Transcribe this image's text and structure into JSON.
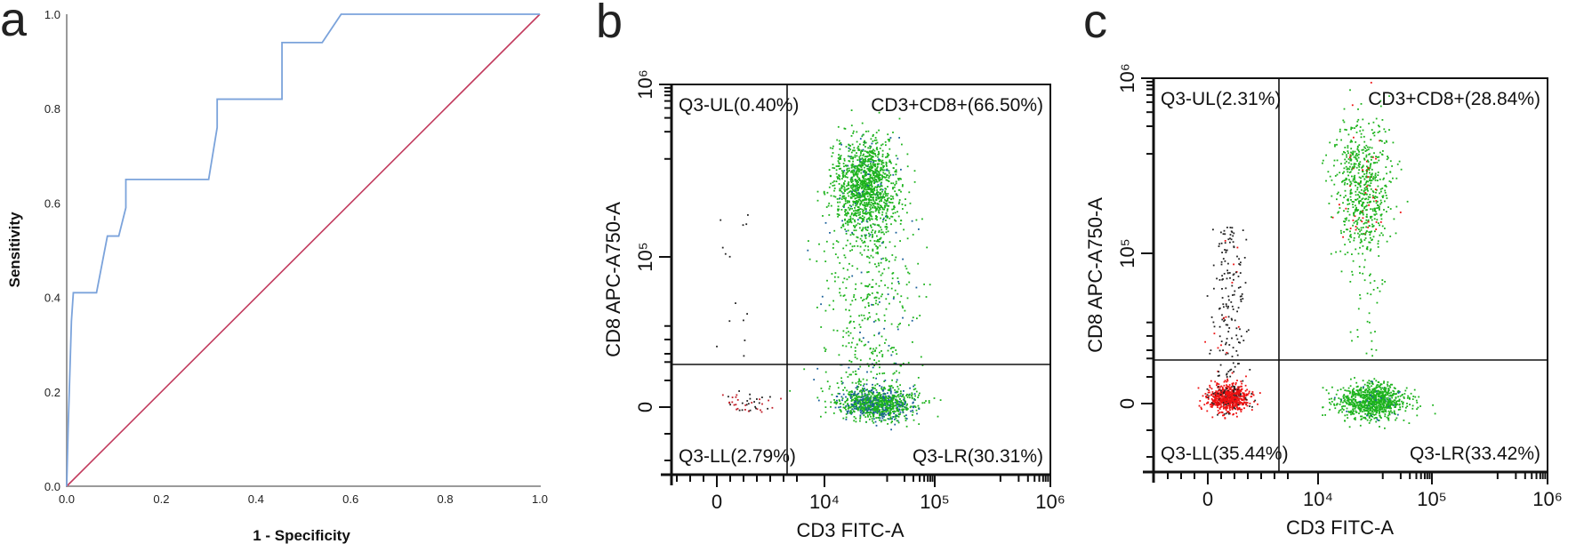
{
  "panels": {
    "a": "a",
    "b": "b",
    "c": "c"
  },
  "chart_data": [
    {
      "type": "line",
      "panel": "a",
      "xlabel": "1 - Specificity",
      "ylabel": "Sensitivity",
      "xlim": [
        0,
        1
      ],
      "ylim": [
        0,
        1
      ],
      "xticks": [
        "0.0",
        "0.2",
        "0.4",
        "0.6",
        "0.8",
        "1.0"
      ],
      "yticks": [
        "0.0",
        "0.2",
        "0.4",
        "0.6",
        "0.8",
        "1.0"
      ],
      "grid": false,
      "series": [
        {
          "role": "roc-curve",
          "color": "#7ba3db",
          "x": [
            0,
            0.003,
            0.01,
            0.014,
            0.063,
            0.086,
            0.11,
            0.125,
            0.125,
            0.3,
            0.318,
            0.318,
            0.455,
            0.455,
            0.54,
            0.58,
            1.0
          ],
          "y": [
            0,
            0.12,
            0.35,
            0.41,
            0.41,
            0.53,
            0.53,
            0.59,
            0.65,
            0.65,
            0.76,
            0.82,
            0.82,
            0.94,
            0.94,
            1.0,
            1.0
          ]
        },
        {
          "role": "reference-line",
          "color": "#c23b5e",
          "x": [
            0,
            1
          ],
          "y": [
            0,
            1
          ]
        }
      ]
    },
    {
      "type": "scatter",
      "panel": "b",
      "xlabel": "CD3 FITC-A",
      "ylabel": "CD8 APC-A750-A",
      "xscale": "biexponential",
      "yscale": "biexponential",
      "xticks": [
        "0",
        "10⁴",
        "10⁵",
        "10⁶"
      ],
      "yticks": [
        "0",
        "10⁵",
        "10⁶"
      ],
      "quadrants": {
        "UL": "Q3-UL(0.40%)",
        "UR": "CD3+CD8+(66.50%)",
        "LL": "Q3-LL(2.79%)",
        "LR": "Q3-LR(30.31%)"
      },
      "colors": {
        "main": "#1db31d",
        "secondary": "#1a5f9a",
        "lowlow": "#c0202a",
        "other": "#222222"
      }
    },
    {
      "type": "scatter",
      "panel": "c",
      "xlabel": "CD3 FITC-A",
      "ylabel": "CD8 APC-A750-A",
      "xscale": "biexponential",
      "yscale": "biexponential",
      "xticks": [
        "0",
        "10⁴",
        "10⁵",
        "10⁶"
      ],
      "yticks": [
        "0",
        "10⁵",
        "10⁶"
      ],
      "quadrants": {
        "UL": "Q3-UL(2.31%)",
        "UR": "CD3+CD8+(28.84%)",
        "LL": "Q3-LL(35.44%)",
        "LR": "Q3-LR(33.42%)"
      },
      "colors": {
        "main": "#1db31d",
        "secondary": "#1a5f9a",
        "lowlow": "#ee1111",
        "other": "#222222"
      }
    }
  ]
}
